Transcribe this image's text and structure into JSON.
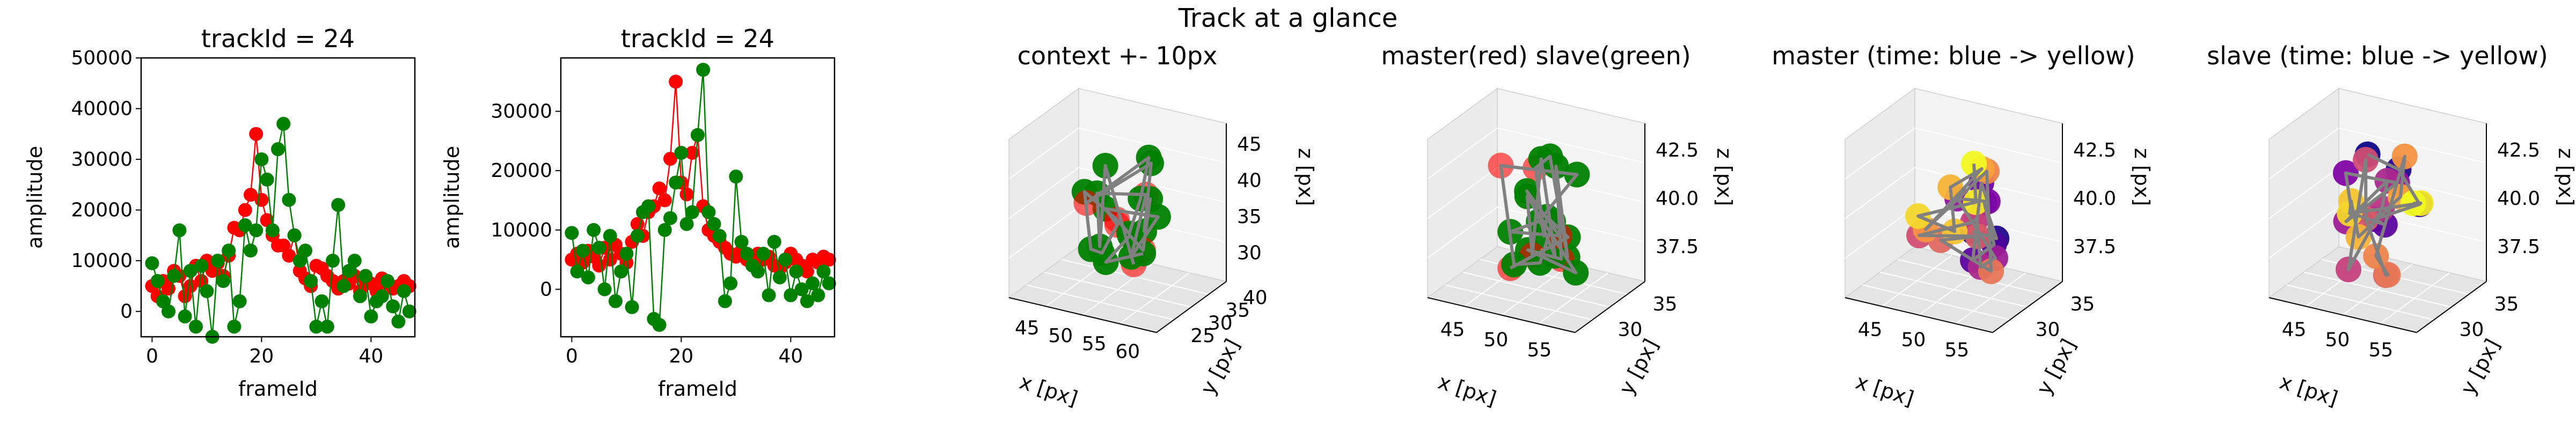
{
  "figure": {
    "suptitle": "Track at a glance"
  },
  "colors": {
    "master": "#ff0000",
    "slave": "#008000",
    "path3d": "#808080",
    "pane": "#f2f2f2",
    "paneEdge": "#d0d0d0",
    "grid": "#dddddd"
  },
  "chart_data": [
    {
      "type": "line",
      "title": "trackId = 24",
      "xlabel": "frameId",
      "ylabel": "amplitude",
      "xlim": [
        -2,
        48
      ],
      "ylim": [
        -5000,
        50000
      ],
      "xticks": [
        "0",
        "20",
        "40"
      ],
      "yticks": [
        "0",
        "10000",
        "20000",
        "30000",
        "40000",
        "50000"
      ],
      "x": [
        0,
        1,
        2,
        3,
        4,
        5,
        6,
        7,
        8,
        9,
        10,
        11,
        12,
        13,
        14,
        15,
        16,
        17,
        18,
        19,
        20,
        21,
        22,
        23,
        24,
        25,
        26,
        27,
        28,
        29,
        30,
        31,
        32,
        33,
        34,
        35,
        36,
        37,
        38,
        39,
        40,
        41,
        42,
        43,
        44,
        45,
        46,
        47
      ],
      "series": [
        {
          "color": "#ff0000",
          "values": [
            5000,
            3000,
            6000,
            4500,
            8000,
            7000,
            3000,
            5000,
            9000,
            6000,
            10000,
            8000,
            9500,
            7000,
            11000,
            16500,
            16000,
            20000,
            23000,
            35000,
            22000,
            18000,
            15000,
            13000,
            13000,
            11000,
            15000,
            8000,
            6500,
            5000,
            9000,
            8500,
            7000,
            6000,
            4500,
            6000,
            5500,
            7000,
            4000,
            6000,
            5500,
            4000,
            6500,
            5500,
            4500,
            5000,
            6000,
            5000
          ]
        },
        {
          "color": "#008000",
          "values": [
            9500,
            6000,
            2000,
            0,
            7000,
            16000,
            -1000,
            8000,
            -3000,
            9000,
            4000,
            -5000,
            10000,
            6000,
            12000,
            -3000,
            2000,
            17000,
            12000,
            16000,
            30000,
            26000,
            16000,
            32000,
            37000,
            22000,
            15000,
            10000,
            12000,
            6000,
            -3000,
            2000,
            -3000,
            10000,
            21000,
            5000,
            8000,
            10000,
            3000,
            7000,
            -1000,
            2000,
            3000,
            6000,
            1000,
            -2000,
            4000,
            0
          ]
        }
      ]
    },
    {
      "type": "line",
      "title": "trackId = 24",
      "xlabel": "frameId",
      "ylabel": "amplitude",
      "xlim": [
        -2,
        48
      ],
      "ylim": [
        -8000,
        39000
      ],
      "xticks": [
        "0",
        "20",
        "40"
      ],
      "yticks": [
        "0",
        "10000",
        "20000",
        "30000"
      ],
      "x": [
        0,
        1,
        2,
        3,
        4,
        5,
        6,
        7,
        8,
        9,
        10,
        11,
        12,
        13,
        14,
        15,
        16,
        17,
        18,
        19,
        20,
        21,
        22,
        23,
        24,
        25,
        26,
        27,
        28,
        29,
        30,
        31,
        32,
        33,
        34,
        35,
        36,
        37,
        38,
        39,
        40,
        41,
        42,
        43,
        44,
        45,
        46,
        47
      ],
      "series": [
        {
          "color": "#ff0000",
          "values": [
            5000,
            6000,
            4500,
            6500,
            5500,
            4000,
            7000,
            5000,
            7500,
            6000,
            4500,
            8000,
            11000,
            9000,
            13000,
            14000,
            17000,
            15000,
            22000,
            35000,
            18000,
            16000,
            23000,
            26000,
            14000,
            10000,
            9000,
            8000,
            7000,
            6000,
            5500,
            6500,
            5000,
            4500,
            6000,
            5000,
            5500,
            4000,
            3500,
            4500,
            6000,
            5000,
            4000,
            3000,
            5000,
            4500,
            5500,
            5000
          ]
        },
        {
          "color": "#008000",
          "values": [
            9500,
            3000,
            6500,
            2000,
            10000,
            7000,
            0,
            9000,
            -2000,
            3000,
            6000,
            -3000,
            9000,
            13000,
            14000,
            -5000,
            -6000,
            10000,
            12000,
            18000,
            23000,
            11000,
            13000,
            26000,
            37000,
            13000,
            11000,
            9000,
            -2000,
            1000,
            19000,
            8000,
            6000,
            4000,
            3000,
            6000,
            -1000,
            8000,
            2000,
            5000,
            -1000,
            3000,
            0,
            -2000,
            1000,
            -1000,
            3000,
            1000
          ]
        }
      ]
    },
    {
      "type": "scatter",
      "title": "context +- 10px",
      "xlabel": "x [px]",
      "ylabel": "y [px]",
      "zlabel": "z [px]",
      "xticks": [
        "45",
        "50",
        "55",
        "60"
      ],
      "yticks": [
        "25",
        "30",
        "35",
        "40"
      ],
      "zticks": [
        "30",
        "35",
        "40",
        "45"
      ],
      "series": [
        {
          "color": "#008000",
          "marker_count": 14
        },
        {
          "color": "#ff0000",
          "marker_count": 4
        }
      ]
    },
    {
      "type": "scatter",
      "title": "master(red) slave(green)",
      "xlabel": "x [px]",
      "ylabel": "y [px]",
      "zlabel": "z [px]",
      "xticks": [
        "45",
        "50",
        "55"
      ],
      "yticks": [
        "30",
        "35"
      ],
      "zticks": [
        "37.5",
        "40.0",
        "42.5"
      ],
      "series": [
        {
          "color": "#008000",
          "marker_count": 18
        },
        {
          "color": "#ff0000",
          "marker_count": 6
        }
      ]
    },
    {
      "type": "scatter",
      "title": "master (time: blue -> yellow)",
      "xlabel": "x [px]",
      "ylabel": "y [px]",
      "zlabel": "z [px]",
      "xticks": [
        "45",
        "50",
        "55"
      ],
      "yticks": [
        "30",
        "35"
      ],
      "zticks": [
        "37.5",
        "40.0",
        "42.5"
      ],
      "colormap": "plasma"
    },
    {
      "type": "scatter",
      "title": "slave (time: blue -> yellow)",
      "xlabel": "x [px]",
      "ylabel": "y [px]",
      "zlabel": "z [px]",
      "xticks": [
        "45",
        "50",
        "55"
      ],
      "yticks": [
        "30",
        "35"
      ],
      "zticks": [
        "37.5",
        "40.0",
        "42.5"
      ],
      "colormap": "plasma"
    }
  ]
}
